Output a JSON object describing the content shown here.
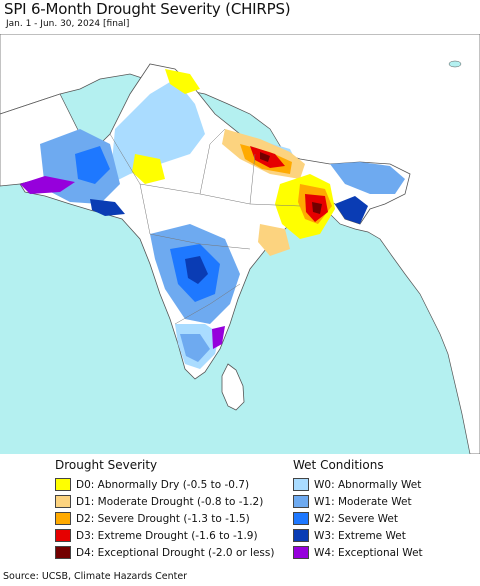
{
  "header": {
    "title": "SPI 6-Month Drought Severity (CHIRPS)",
    "subtitle": "Jan. 1 - Jun. 30, 2024 [final]"
  },
  "legend": {
    "drought": {
      "heading": "Drought Severity",
      "items": [
        {
          "code": "D0",
          "label": "D0: Abnormally Dry (-0.5 to -0.7)",
          "color": "#ffff00"
        },
        {
          "code": "D1",
          "label": "D1: Moderate Drought (-0.8 to -1.2)",
          "color": "#fcd37f"
        },
        {
          "code": "D2",
          "label": "D2: Severe Drought (-1.3 to -1.5)",
          "color": "#ffaa00"
        },
        {
          "code": "D3",
          "label": "D3: Extreme Drought (-1.6 to -1.9)",
          "color": "#e60000"
        },
        {
          "code": "D4",
          "label": "D4: Exceptional Drought (-2.0 or less)",
          "color": "#730000"
        }
      ]
    },
    "wet": {
      "heading": "Wet Conditions",
      "items": [
        {
          "code": "W0",
          "label": "W0: Abnormally Wet",
          "color": "#aadcff"
        },
        {
          "code": "W1",
          "label": "W1: Moderate Wet",
          "color": "#6eaaf0"
        },
        {
          "code": "W2",
          "label": "W2: Severe Wet",
          "color": "#1e78ff"
        },
        {
          "code": "W3",
          "label": "W3: Extreme Wet",
          "color": "#0a3cb4"
        },
        {
          "code": "W4",
          "label": "W4: Exceptional Wet",
          "color": "#9600dc"
        }
      ]
    }
  },
  "colors": {
    "ocean": "#b4f0f0",
    "land": "#ffffff",
    "border": "#555555"
  },
  "footer": {
    "source": "Source: UCSB, Climate Hazards Center"
  }
}
